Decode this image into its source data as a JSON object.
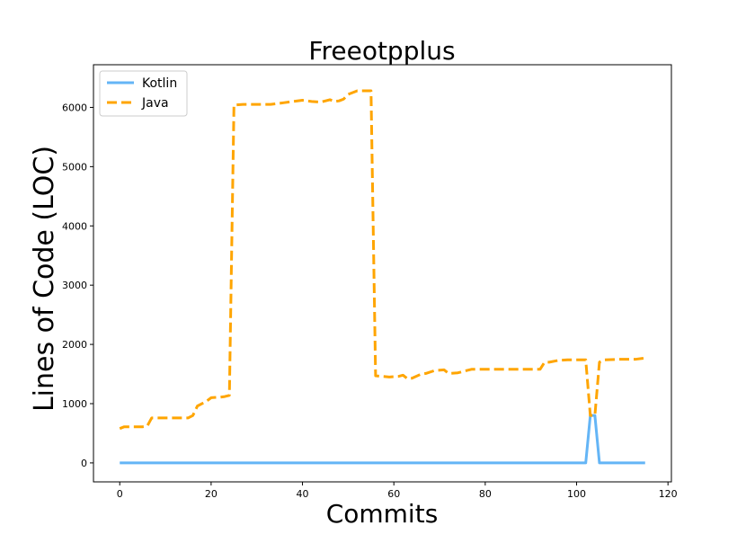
{
  "chart_data": {
    "type": "line",
    "title": "Freeotpplus",
    "xlabel": "Commits",
    "ylabel": "Lines of Code (LOC)",
    "xlim": [
      -5.75,
      120.75
    ],
    "ylim": [
      -320,
      6720
    ],
    "xticks": [
      0,
      20,
      40,
      60,
      80,
      100,
      120
    ],
    "yticks": [
      0,
      1000,
      2000,
      3000,
      4000,
      5000,
      6000
    ],
    "legend_position": "top-left",
    "grid": false,
    "series": [
      {
        "name": "Kotlin",
        "color": "#64b5f6",
        "dash": "solid",
        "x": [
          0,
          102,
          103,
          104,
          105,
          115
        ],
        "y": [
          0,
          0,
          800,
          800,
          0,
          0
        ]
      },
      {
        "name": "Java",
        "color": "#ffa500",
        "dash": "dashed",
        "x": [
          0,
          1,
          5,
          6,
          7,
          10,
          15,
          16,
          17,
          19,
          20,
          22,
          23,
          24,
          25,
          27,
          33,
          36,
          40,
          42,
          44,
          46,
          47,
          48,
          49,
          50,
          52,
          55,
          56,
          59,
          61,
          62,
          63,
          64,
          66,
          67,
          69,
          71,
          72,
          74,
          76,
          77,
          79,
          80,
          85,
          92,
          93,
          94,
          96,
          98,
          100,
          102,
          103,
          104,
          105,
          106,
          110,
          113,
          115
        ],
        "y": [
          580,
          610,
          610,
          620,
          760,
          760,
          760,
          800,
          960,
          1040,
          1100,
          1110,
          1120,
          1140,
          6040,
          6050,
          6050,
          6080,
          6120,
          6100,
          6090,
          6130,
          6100,
          6110,
          6140,
          6220,
          6280,
          6280,
          1470,
          1450,
          1460,
          1480,
          1420,
          1430,
          1500,
          1510,
          1560,
          1570,
          1510,
          1520,
          1560,
          1580,
          1580,
          1580,
          1580,
          1580,
          1700,
          1700,
          1730,
          1740,
          1740,
          1740,
          800,
          800,
          1700,
          1740,
          1750,
          1750,
          1770
        ]
      }
    ]
  }
}
